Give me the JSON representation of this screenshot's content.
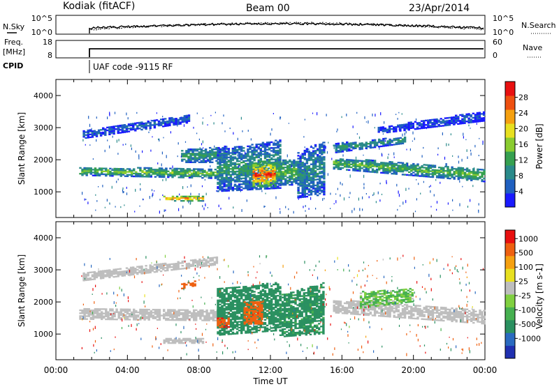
{
  "header": {
    "station": "Kodiak (fitACF)",
    "beam": "Beam 00",
    "date": "23/Apr/2014"
  },
  "noise_panel": {
    "left_label": "N.Sky",
    "right_label": "N.Search",
    "left_ticks": [
      "10^5",
      "10^0"
    ],
    "right_ticks": [
      "10^5",
      "10^0"
    ]
  },
  "freq_panel": {
    "left_label_line1": "Freq.",
    "left_label_line2": "[MHz]",
    "right_label": "Nave",
    "left_ticks": [
      18,
      8
    ],
    "right_ticks": [
      60,
      0
    ]
  },
  "cpid": {
    "label": "CPID",
    "text": "UAF code -9115 RF"
  },
  "chart_data": [
    {
      "type": "heatmap",
      "name": "power",
      "ylabel": "Slant Range [km]",
      "xlabel": "",
      "xlim": [
        0,
        24
      ],
      "ylim": [
        200,
        4500
      ],
      "yticks": [
        1000,
        2000,
        3000,
        4000
      ],
      "colorbar": {
        "label": "Power [dB]",
        "ticks": [
          4,
          8,
          12,
          16,
          20,
          24,
          28
        ],
        "range": [
          0,
          32
        ],
        "colors": [
          "#1a1aff",
          "#2060c0",
          "#2a8a8a",
          "#36a050",
          "#8acc30",
          "#e8e020",
          "#f5a010",
          "#ee5010",
          "#e81010"
        ]
      },
      "bands": [
        {
          "x": [
            1.3,
            9.3
          ],
          "y0": [
            1500,
            1400
          ],
          "y1": [
            1750,
            1700
          ],
          "level": 13
        },
        {
          "x": [
            15.5,
            24
          ],
          "y0": [
            1700,
            1300
          ],
          "y1": [
            2050,
            1700
          ],
          "level": 12
        },
        {
          "x": [
            1.5,
            7.5
          ],
          "y0": [
            2650,
            3150
          ],
          "y1": [
            2900,
            3400
          ],
          "level": 5
        },
        {
          "x": [
            7.0,
            9.5
          ],
          "y0": [
            1900,
            1900
          ],
          "y1": [
            2300,
            2400
          ],
          "level": 10
        },
        {
          "x": [
            9.0,
            12.5
          ],
          "y0": [
            1000,
            1100
          ],
          "y1": [
            2300,
            2600
          ],
          "level": 9
        },
        {
          "x": [
            11.0,
            12.3
          ],
          "y0": [
            1100,
            1200
          ],
          "y1": [
            1900,
            1900
          ],
          "level": 24
        },
        {
          "x": [
            12.3,
            13.5
          ],
          "y0": [
            1200,
            1200
          ],
          "y1": [
            2000,
            2000
          ],
          "level": 12
        },
        {
          "x": [
            13.5,
            15.0
          ],
          "y0": [
            800,
            900
          ],
          "y1": [
            2200,
            2600
          ],
          "level": 8
        },
        {
          "x": [
            15.5,
            19.5
          ],
          "y0": [
            2200,
            2500
          ],
          "y1": [
            2500,
            2700
          ],
          "level": 9
        },
        {
          "x": [
            18.0,
            24
          ],
          "y0": [
            2800,
            3200
          ],
          "y1": [
            3000,
            3500
          ],
          "level": 4
        },
        {
          "x": [
            6.0,
            8.2
          ],
          "y0": [
            700,
            700
          ],
          "y1": [
            850,
            850
          ],
          "level": 22
        }
      ]
    },
    {
      "type": "heatmap",
      "name": "velocity",
      "ylabel": "Slant Range [km]",
      "xlabel": "Time UT",
      "xlim": [
        0,
        24
      ],
      "ylim": [
        200,
        4500
      ],
      "yticks": [
        1000,
        2000,
        3000,
        4000
      ],
      "xtick_labels": [
        "00:00",
        "04:00",
        "08:00",
        "12:00",
        "16:00",
        "20:00",
        "00:00"
      ],
      "colorbar": {
        "label": "Velocity [m s-1]",
        "ticks": [
          1000,
          500,
          100,
          25,
          -25,
          -100,
          -500,
          -1000
        ],
        "colors": [
          "#2030b0",
          "#2a6ac0",
          "#2a9060",
          "#46b050",
          "#80d040",
          "#bebebe",
          "#e8e020",
          "#f5a010",
          "#ee6010",
          "#e81010"
        ]
      },
      "bands": [
        {
          "x": [
            1.3,
            9.3
          ],
          "y0": [
            1450,
            1400
          ],
          "y1": [
            1800,
            1750
          ],
          "level": 0
        },
        {
          "x": [
            15.5,
            24
          ],
          "y0": [
            1650,
            1300
          ],
          "y1": [
            2050,
            1750
          ],
          "level": 0
        },
        {
          "x": [
            1.5,
            9.0
          ],
          "y0": [
            2650,
            3150
          ],
          "y1": [
            2900,
            3400
          ],
          "level": 0
        },
        {
          "x": [
            9.0,
            12.5
          ],
          "y0": [
            950,
            1100
          ],
          "y1": [
            2400,
            2600
          ],
          "level": 300
        },
        {
          "x": [
            12.5,
            15.0
          ],
          "y0": [
            900,
            1000
          ],
          "y1": [
            2200,
            2600
          ],
          "level": 150
        },
        {
          "x": [
            9.0,
            9.6
          ],
          "y0": [
            1200,
            1200
          ],
          "y1": [
            1500,
            1500
          ],
          "level": -400
        },
        {
          "x": [
            10.5,
            11.5
          ],
          "y0": [
            1300,
            1300
          ],
          "y1": [
            2000,
            2000
          ],
          "level": -300
        },
        {
          "x": [
            7.0,
            7.8
          ],
          "y0": [
            2400,
            2500
          ],
          "y1": [
            2550,
            2650
          ],
          "level": -300
        },
        {
          "x": [
            17.0,
            20.0
          ],
          "y0": [
            1800,
            2000
          ],
          "y1": [
            2300,
            2400
          ],
          "level": 50
        },
        {
          "x": [
            6.0,
            8.2
          ],
          "y0": [
            700,
            700
          ],
          "y1": [
            850,
            850
          ],
          "level": 0
        }
      ]
    }
  ]
}
